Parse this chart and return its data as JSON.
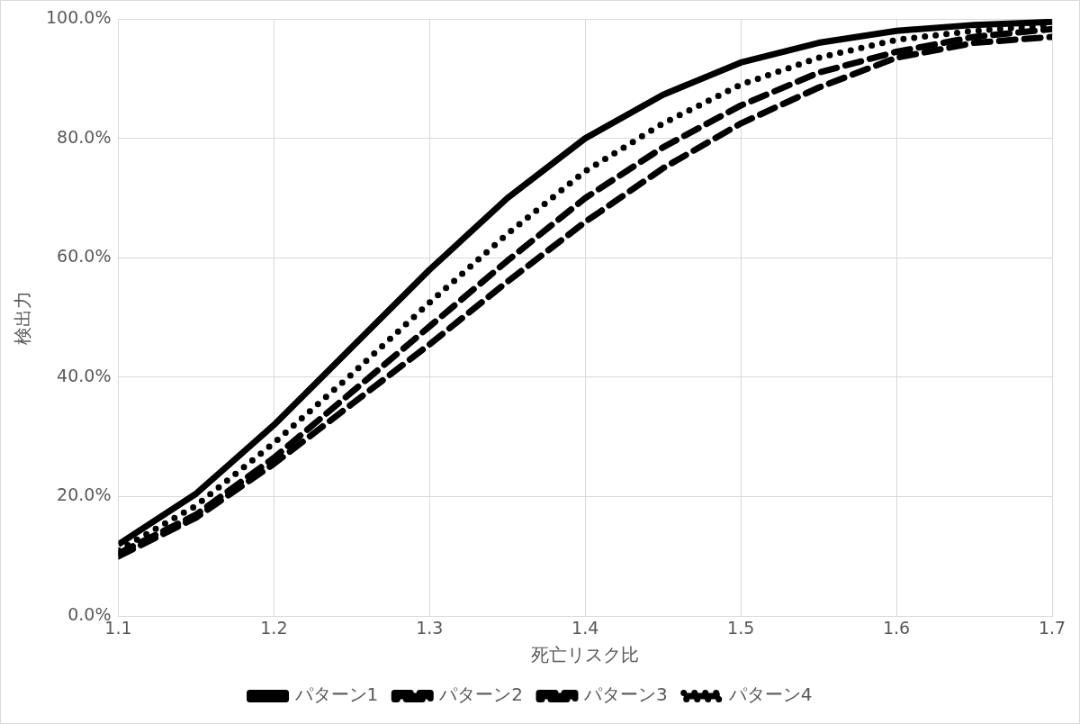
{
  "chart_data": {
    "type": "line",
    "xlabel": "死亡リスク比",
    "ylabel": "検出力",
    "x": [
      1.1,
      1.15,
      1.2,
      1.25,
      1.3,
      1.35,
      1.4,
      1.45,
      1.5,
      1.55,
      1.6,
      1.65,
      1.7
    ],
    "series": [
      {
        "name": "パターン1",
        "color": "#000000",
        "line_style": "solid",
        "values": [
          12,
          20.5,
          32,
          45,
          58,
          70,
          80,
          87.3,
          92.7,
          96,
          98,
          99,
          99.5
        ]
      },
      {
        "name": "パターン2",
        "color": "#000000",
        "line_style": "dashed",
        "values": [
          10,
          16.5,
          25.5,
          35.5,
          45.5,
          56,
          66,
          75,
          82.5,
          88.5,
          93.5,
          96,
          97
        ]
      },
      {
        "name": "パターン3",
        "color": "#000000",
        "line_style": "dashed",
        "values": [
          10.5,
          17,
          26.5,
          37.5,
          48.5,
          59.5,
          70,
          78.5,
          85.5,
          91,
          94.5,
          97,
          98.3
        ]
      },
      {
        "name": "パターン4",
        "color": "#000000",
        "line_style": "dotted",
        "values": [
          11,
          18.5,
          29,
          40.5,
          52.5,
          64,
          74.5,
          82.5,
          89,
          93.5,
          96.5,
          98,
          99
        ]
      }
    ],
    "xlim": [
      1.1,
      1.7
    ],
    "xticks": [
      1.1,
      1.2,
      1.3,
      1.4,
      1.5,
      1.6,
      1.7
    ],
    "ylim": [
      0,
      100
    ],
    "yticks": [
      {
        "value": 0,
        "label": "0.0%"
      },
      {
        "value": 20,
        "label": "20.0%"
      },
      {
        "value": 40,
        "label": "40.0%"
      },
      {
        "value": 60,
        "label": "60.0%"
      },
      {
        "value": 80,
        "label": "80.0%"
      },
      {
        "value": 100,
        "label": "100.0%"
      }
    ],
    "grid": true,
    "legend": "bottom",
    "marker": "none"
  }
}
